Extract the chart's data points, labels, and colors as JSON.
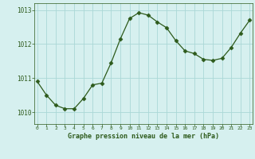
{
  "x": [
    0,
    1,
    2,
    3,
    4,
    5,
    6,
    7,
    8,
    9,
    10,
    11,
    12,
    13,
    14,
    15,
    16,
    17,
    18,
    19,
    20,
    21,
    22,
    23
  ],
  "y": [
    1010.9,
    1010.5,
    1010.2,
    1010.1,
    1010.1,
    1010.4,
    1010.8,
    1010.85,
    1011.45,
    1012.15,
    1012.75,
    1012.92,
    1012.85,
    1012.65,
    1012.48,
    1012.1,
    1011.8,
    1011.72,
    1011.55,
    1011.52,
    1011.58,
    1011.9,
    1012.32,
    1012.7
  ],
  "line_color": "#2d5a1b",
  "marker": "D",
  "marker_size": 2.5,
  "bg_color": "#d6f0ef",
  "grid_color": "#aad8d6",
  "xlabel": "Graphe pression niveau de la mer (hPa)",
  "xlabel_color": "#2d5a1b",
  "tick_color": "#2d5a1b",
  "ylim": [
    1009.65,
    1013.2
  ],
  "xlim": [
    -0.3,
    23.3
  ],
  "yticks": [
    1010,
    1011,
    1012,
    1013
  ],
  "xticks": [
    0,
    1,
    2,
    3,
    4,
    5,
    6,
    7,
    8,
    9,
    10,
    11,
    12,
    13,
    14,
    15,
    16,
    17,
    18,
    19,
    20,
    21,
    22,
    23
  ],
  "fig_width": 3.2,
  "fig_height": 2.0,
  "dpi": 100
}
